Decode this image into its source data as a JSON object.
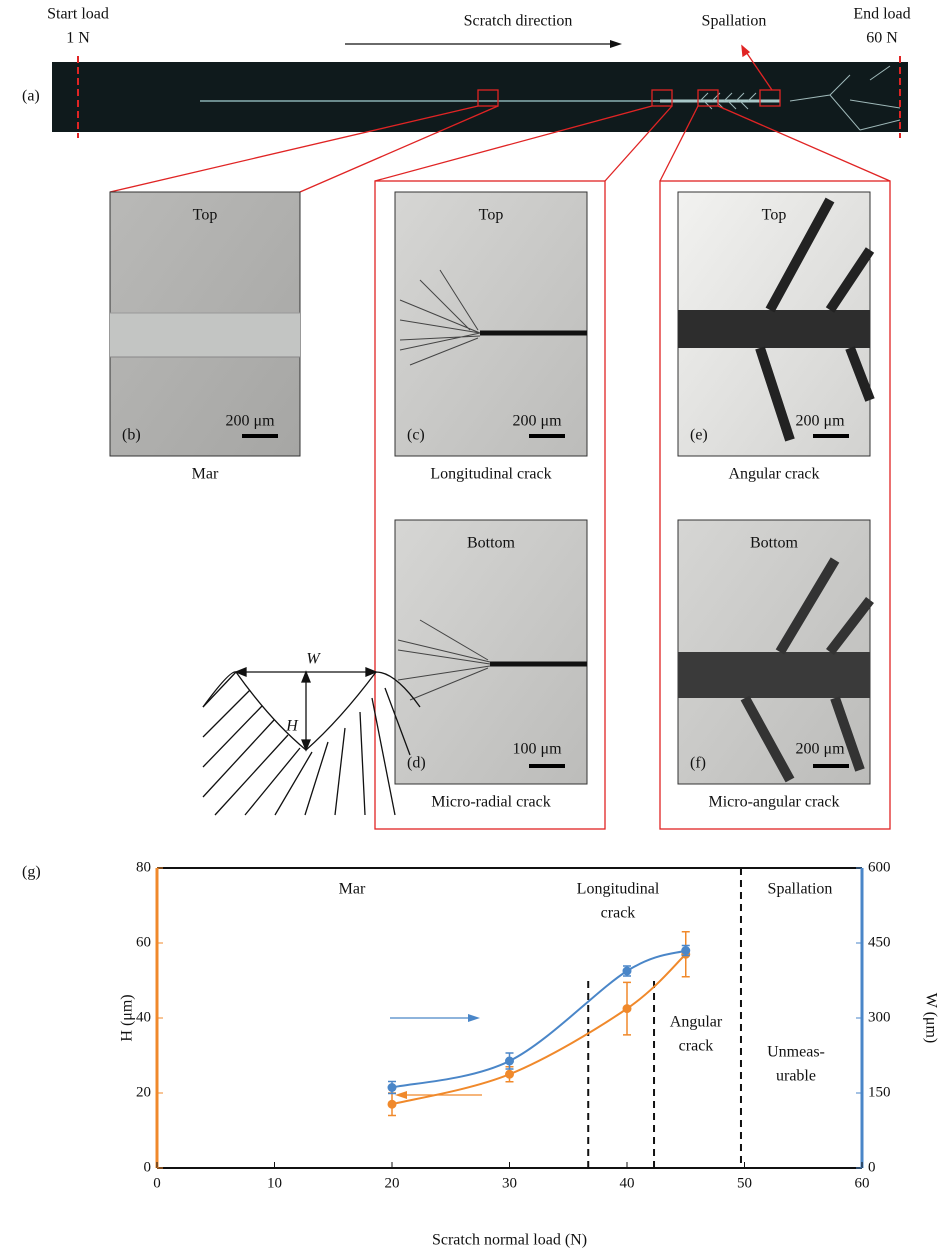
{
  "panel_a": {
    "label": "(a)",
    "start_load": [
      "Start load",
      "1 N"
    ],
    "direction": "Scratch direction",
    "spallation": "Spallation",
    "end_load": [
      "End load",
      "60 N"
    ]
  },
  "panels": [
    {
      "label": "(b)",
      "view": "Top",
      "scale": "200 μm",
      "caption": "Mar"
    },
    {
      "label": "(c)",
      "view": "Top",
      "scale": "200 μm",
      "caption": "Longitudinal crack"
    },
    {
      "label": "(d)",
      "view": "Bottom",
      "scale": "100 μm",
      "caption": "Micro-radial crack"
    },
    {
      "label": "(e)",
      "view": "Top",
      "scale": "200 μm",
      "caption": "Angular crack"
    },
    {
      "label": "(f)",
      "view": "Bottom",
      "scale": "200 μm",
      "caption": "Micro-angular crack"
    }
  ],
  "chart_data": {
    "type": "line",
    "label": "(g)",
    "xlabel": "Scratch normal load (N)",
    "ylabel": "H (μm)",
    "y2label": "W (μm)",
    "x": [
      20,
      30,
      40,
      45
    ],
    "series": [
      {
        "name": "H",
        "color": "#f0892b",
        "values": [
          17,
          25,
          42.5,
          57
        ],
        "errors": [
          3,
          2,
          7,
          6
        ]
      },
      {
        "name": "W",
        "axis": "y2",
        "color": "#4a86c8",
        "values": [
          161,
          214,
          394,
          435
        ],
        "errors": [
          12,
          16,
          10,
          10
        ]
      }
    ],
    "xlim": [
      0,
      60
    ],
    "ylim": [
      0,
      80
    ],
    "y2lim": [
      0,
      600
    ],
    "xticks": [
      0,
      10,
      20,
      30,
      40,
      50,
      60
    ],
    "yticks": [
      0,
      20,
      40,
      60,
      80
    ],
    "y2ticks": [
      0,
      150,
      300,
      450,
      600
    ],
    "boundaries": [
      36.7,
      42.3,
      49.7
    ],
    "regions": [
      [
        "Mar"
      ],
      [
        "Longitudinal",
        "crack"
      ],
      [
        "Spallation"
      ],
      [
        "Angular",
        "crack"
      ],
      [
        "Unmeas-",
        "urable"
      ]
    ]
  }
}
